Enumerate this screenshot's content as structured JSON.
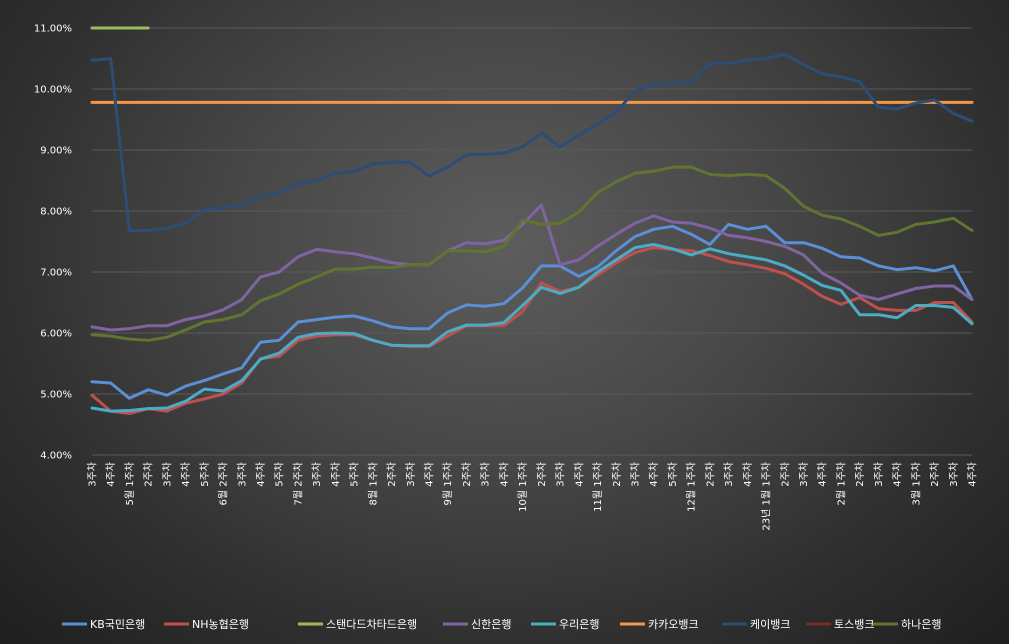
{
  "chart_data": {
    "type": "line",
    "title": "",
    "xlabel": "",
    "ylabel": "",
    "ylim": [
      0.04,
      0.11
    ],
    "y_ticks": [
      "11.00%",
      "10.00%",
      "9.00%",
      "8.00%",
      "7.00%",
      "6.00%",
      "5.00%",
      "4.00%"
    ],
    "grid": "horizontal",
    "legend_position": "bottom",
    "categories": [
      "3주차",
      "4주차",
      "5월 1주차",
      "2주차",
      "3주차",
      "4주차",
      "5주차",
      "6월 2주차",
      "3주차",
      "4주차",
      "5주차",
      "7월 2주차",
      "3주차",
      "4주차",
      "5주차",
      "8월 1주차",
      "2주차",
      "3주차",
      "4주차",
      "9월 1주차",
      "2주차",
      "3주차",
      "4주차",
      "10월 1주차",
      "2주차",
      "3주차",
      "4주차",
      "11월 1주차",
      "2주차",
      "3주차",
      "4주차",
      "5주차",
      "12월 1주차",
      "2주차",
      "3주차",
      "4주차",
      "23년 1월 1주차",
      "2주차",
      "3주차",
      "4주차",
      "2월 1주차",
      "2주차",
      "3주차",
      "4주차",
      "3월 1주차",
      "2주차",
      "3주차",
      "4주차"
    ],
    "series": [
      {
        "name": "KB국민은행",
        "color": "#5b8fd6",
        "values": [
          5.2,
          5.18,
          4.93,
          5.07,
          4.98,
          5.13,
          5.22,
          5.33,
          5.43,
          5.85,
          5.88,
          6.18,
          6.22,
          6.26,
          6.28,
          6.2,
          6.1,
          6.07,
          6.07,
          6.33,
          6.46,
          6.44,
          6.48,
          6.74,
          7.1,
          7.1,
          6.93,
          7.08,
          7.35,
          7.58,
          7.7,
          7.75,
          7.62,
          7.45,
          7.78,
          7.7,
          7.75,
          7.48,
          7.48,
          7.39,
          7.25,
          7.23,
          7.1,
          7.04,
          7.07,
          7.02,
          7.1,
          6.55
        ]
      },
      {
        "name": "NH농협은행",
        "color": "#c0504d",
        "values": [
          4.98,
          4.72,
          4.68,
          4.76,
          4.72,
          4.85,
          4.92,
          5.0,
          5.18,
          5.58,
          5.62,
          5.88,
          5.95,
          5.97,
          5.97,
          5.88,
          5.8,
          5.78,
          5.78,
          5.95,
          6.12,
          6.12,
          6.12,
          6.35,
          6.82,
          6.68,
          6.75,
          6.95,
          7.15,
          7.32,
          7.4,
          7.37,
          7.35,
          7.27,
          7.17,
          7.12,
          7.06,
          6.97,
          6.8,
          6.6,
          6.47,
          6.58,
          6.4,
          6.37,
          6.37,
          6.5,
          6.5,
          6.18
        ]
      },
      {
        "name": "스탠다드차타드은행",
        "color": "#9bbb59",
        "values": [
          11.0,
          11.0,
          11.0,
          11.0,
          null,
          null,
          null,
          null,
          null,
          null,
          null,
          null,
          null,
          null,
          null,
          null,
          null,
          null,
          null,
          null,
          null,
          null,
          null,
          null,
          null,
          null,
          null,
          null,
          null,
          null,
          null,
          null,
          null,
          null,
          null,
          null,
          null,
          null,
          null,
          null,
          null,
          null,
          null,
          null,
          null,
          null,
          null,
          null
        ]
      },
      {
        "name": "신한은행",
        "color": "#8064a2",
        "values": [
          6.1,
          6.05,
          6.07,
          6.12,
          6.12,
          6.22,
          6.28,
          6.38,
          6.55,
          6.92,
          7.0,
          7.25,
          7.37,
          7.33,
          7.3,
          7.23,
          7.15,
          7.12,
          7.12,
          7.35,
          7.48,
          7.46,
          7.52,
          7.78,
          8.1,
          7.12,
          7.2,
          7.42,
          7.62,
          7.8,
          7.92,
          7.82,
          7.8,
          7.72,
          7.6,
          7.56,
          7.5,
          7.42,
          7.28,
          6.98,
          6.82,
          6.62,
          6.55,
          6.64,
          6.73,
          6.77,
          6.77,
          6.55
        ]
      },
      {
        "name": "우리은행",
        "color": "#4bacc6",
        "values": [
          4.77,
          4.72,
          4.73,
          4.76,
          4.77,
          4.88,
          5.08,
          5.05,
          5.22,
          5.57,
          5.67,
          5.93,
          5.99,
          6.0,
          5.99,
          5.88,
          5.8,
          5.79,
          5.79,
          6.02,
          6.13,
          6.13,
          6.17,
          6.45,
          6.75,
          6.65,
          6.75,
          7.0,
          7.2,
          7.4,
          7.45,
          7.38,
          7.28,
          7.38,
          7.3,
          7.25,
          7.2,
          7.1,
          6.95,
          6.78,
          6.7,
          6.3,
          6.3,
          6.25,
          6.45,
          6.45,
          6.42,
          6.15
        ]
      },
      {
        "name": "카카오뱅크",
        "color": "#f79646",
        "values": [
          9.78,
          9.78,
          9.78,
          9.78,
          9.78,
          9.78,
          9.78,
          9.78,
          9.78,
          9.78,
          9.78,
          9.78,
          9.78,
          9.78,
          9.78,
          9.78,
          9.78,
          9.78,
          9.78,
          9.78,
          9.78,
          9.78,
          9.78,
          9.78,
          9.78,
          9.78,
          9.78,
          9.78,
          9.78,
          9.78,
          9.78,
          9.78,
          9.78,
          9.78,
          9.78,
          9.78,
          9.78,
          9.78,
          9.78,
          9.78,
          9.78,
          9.78,
          9.78,
          9.78,
          9.78,
          9.78,
          9.78,
          9.78
        ]
      },
      {
        "name": "케이뱅크",
        "color": "#2c4d75",
        "values": [
          10.47,
          10.5,
          7.68,
          7.68,
          7.72,
          7.8,
          8.02,
          8.05,
          8.1,
          8.25,
          8.3,
          8.45,
          8.5,
          8.62,
          8.65,
          8.77,
          8.8,
          8.8,
          8.57,
          8.72,
          8.92,
          8.93,
          8.95,
          9.05,
          9.28,
          9.05,
          9.25,
          9.42,
          9.62,
          9.97,
          10.07,
          10.1,
          10.12,
          10.42,
          10.42,
          10.47,
          10.5,
          10.57,
          10.4,
          10.25,
          10.2,
          10.12,
          9.7,
          9.67,
          9.77,
          9.82,
          9.6,
          9.47
        ]
      },
      {
        "name": "토스뱅크",
        "color": "#772c2a",
        "values": [
          null,
          null,
          null,
          null,
          null,
          null,
          null,
          null,
          null,
          null,
          null,
          null,
          null,
          null,
          null,
          null,
          null,
          null,
          null,
          null,
          null,
          null,
          null,
          null,
          null,
          null,
          null,
          null,
          null,
          null,
          null,
          null,
          null,
          null,
          null,
          null,
          null,
          null,
          null,
          null,
          null,
          null,
          null,
          null,
          null,
          null,
          null,
          null
        ]
      },
      {
        "name": "하나은행",
        "color": "#5f7530",
        "values": [
          5.97,
          5.95,
          5.9,
          5.88,
          5.93,
          6.05,
          6.18,
          6.22,
          6.3,
          6.53,
          6.64,
          6.8,
          6.92,
          7.05,
          7.05,
          7.08,
          7.07,
          7.12,
          7.12,
          7.35,
          7.35,
          7.33,
          7.42,
          7.85,
          7.78,
          7.8,
          7.98,
          8.3,
          8.48,
          8.62,
          8.65,
          8.72,
          8.72,
          8.6,
          8.58,
          8.6,
          8.58,
          8.37,
          8.08,
          7.93,
          7.87,
          7.75,
          7.6,
          7.65,
          7.78,
          7.82,
          7.88,
          7.68
        ]
      }
    ]
  }
}
